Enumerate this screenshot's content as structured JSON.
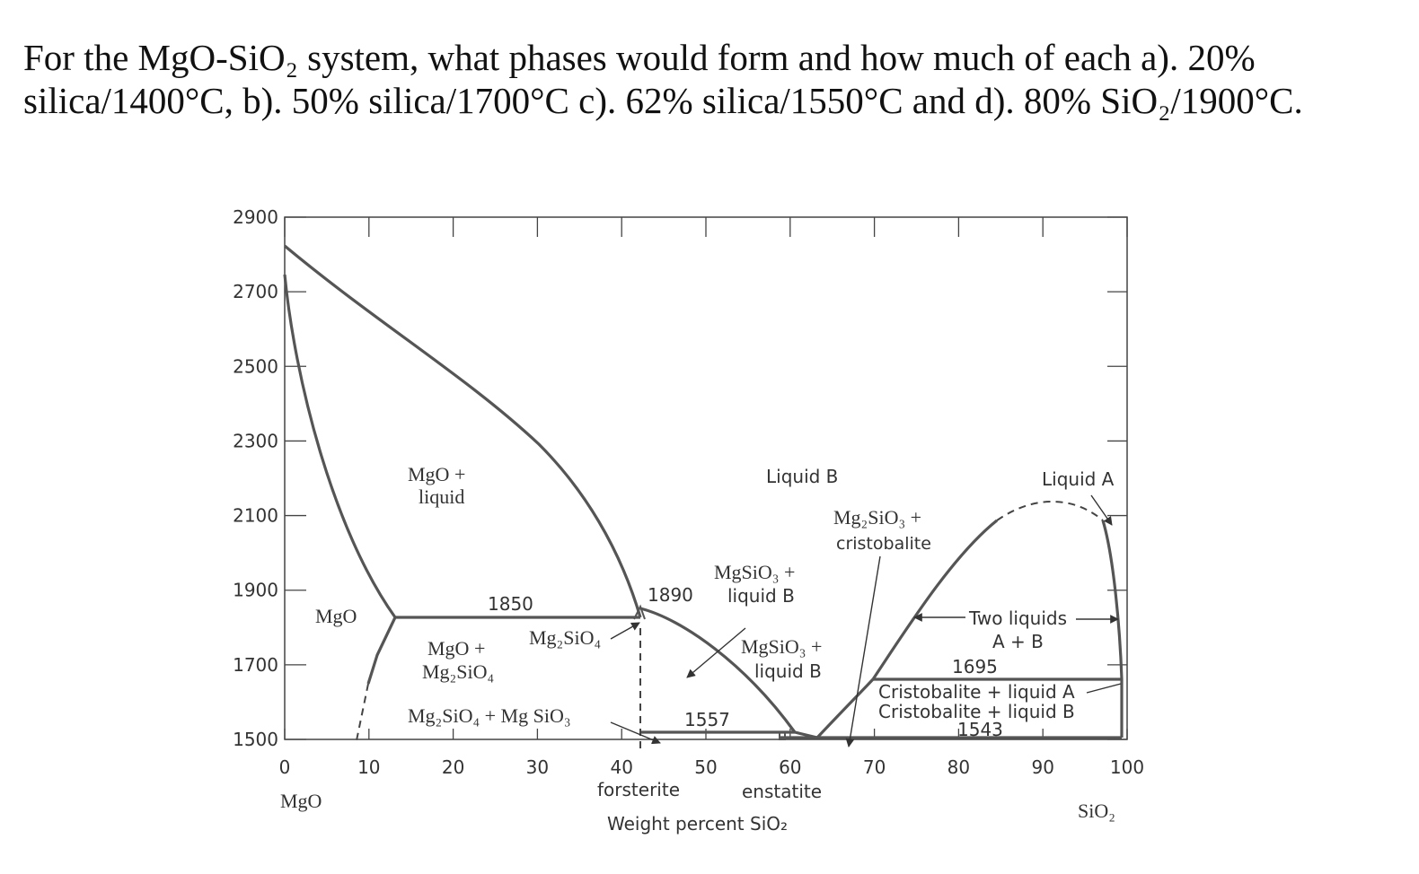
{
  "question": {
    "line1": "For the MgO-SiO₂ system, what phases would form and how much of each a). 20%",
    "line2": "silica/1400°C, b). 50% silica/1700°C c). 62% silica/1550°C and d). 80% SiO₂/1900°C."
  },
  "axes": {
    "x_ticks": [
      "0",
      "10",
      "20",
      "30",
      "40",
      "50",
      "60",
      "70",
      "80",
      "90",
      "100"
    ],
    "y_ticks": [
      "2900",
      "2700",
      "2500",
      "2300",
      "2100",
      "1900",
      "1700",
      "1500"
    ],
    "x_title": "Weight percent SiO₂",
    "left_end": "MgO",
    "right_end": "SiO₂",
    "compound_a": "forsterite",
    "compound_b": "enstatite"
  },
  "regions": {
    "mgo_liquid_1": "MgO +",
    "mgo_liquid_2": "liquid",
    "liquid_b": "Liquid B",
    "liquid_a": "Liquid A",
    "mg2sio3_cristo_1": "Mg₂SiO₃ +",
    "mg2sio3_cristo_2": "cristobalite",
    "mgsio3_liqb_upper_1": "MgSiO₃ +",
    "mgsio3_liqb_upper_2": "liquid B",
    "mgo_solid": "MgO",
    "t1850": "1850",
    "t1890": "1890",
    "mg2sio4": "Mg₂SiO₄",
    "mgo_mg2sio4_1": "MgO +",
    "mgo_mg2sio4_2": "Mg₂SiO₄",
    "mgsio3_liqb_lower_1": "MgSiO₃ +",
    "mgsio3_liqb_lower_2": "liquid B",
    "two_liquids": "Two liquids",
    "a_plus_b": "A + B",
    "t1695": "1695",
    "cristo_liq_a": "Cristobalite + liquid A",
    "cristo_liq_b": "Cristobalite + liquid B",
    "t1543": "1543",
    "mg2sio4_mgsio3": "Mg₂SiO₄ + Mg SiO₃",
    "t1557": "1557"
  }
}
